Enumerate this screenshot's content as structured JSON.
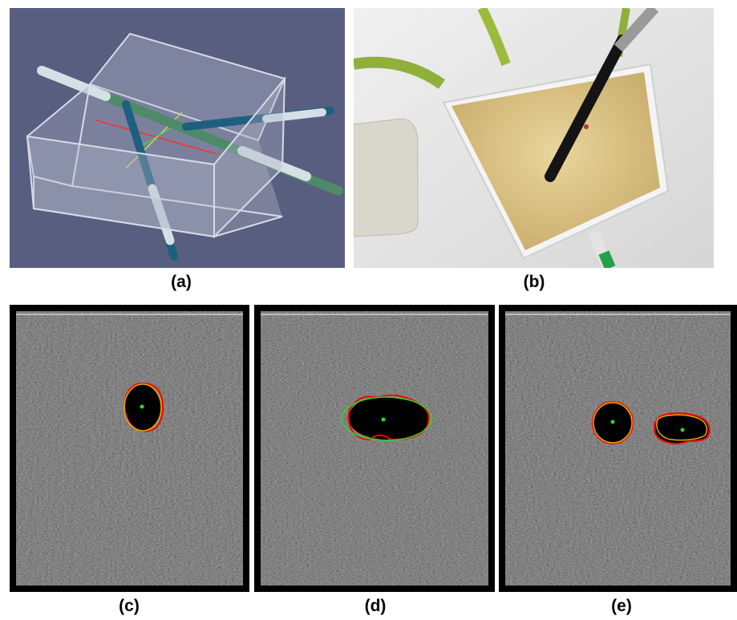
{
  "figure": {
    "captions": {
      "a": "(a)",
      "b": "(b)",
      "c": "(c)",
      "d": "(d)",
      "e": "(e)"
    }
  },
  "colors": {
    "render_bg": "#585e80",
    "phantom_gel": "#d9c188",
    "us_black": "#000000",
    "contour_red": "#ff0000",
    "contour_green": "#22dd22",
    "contour_yellow": "#e0b000"
  }
}
